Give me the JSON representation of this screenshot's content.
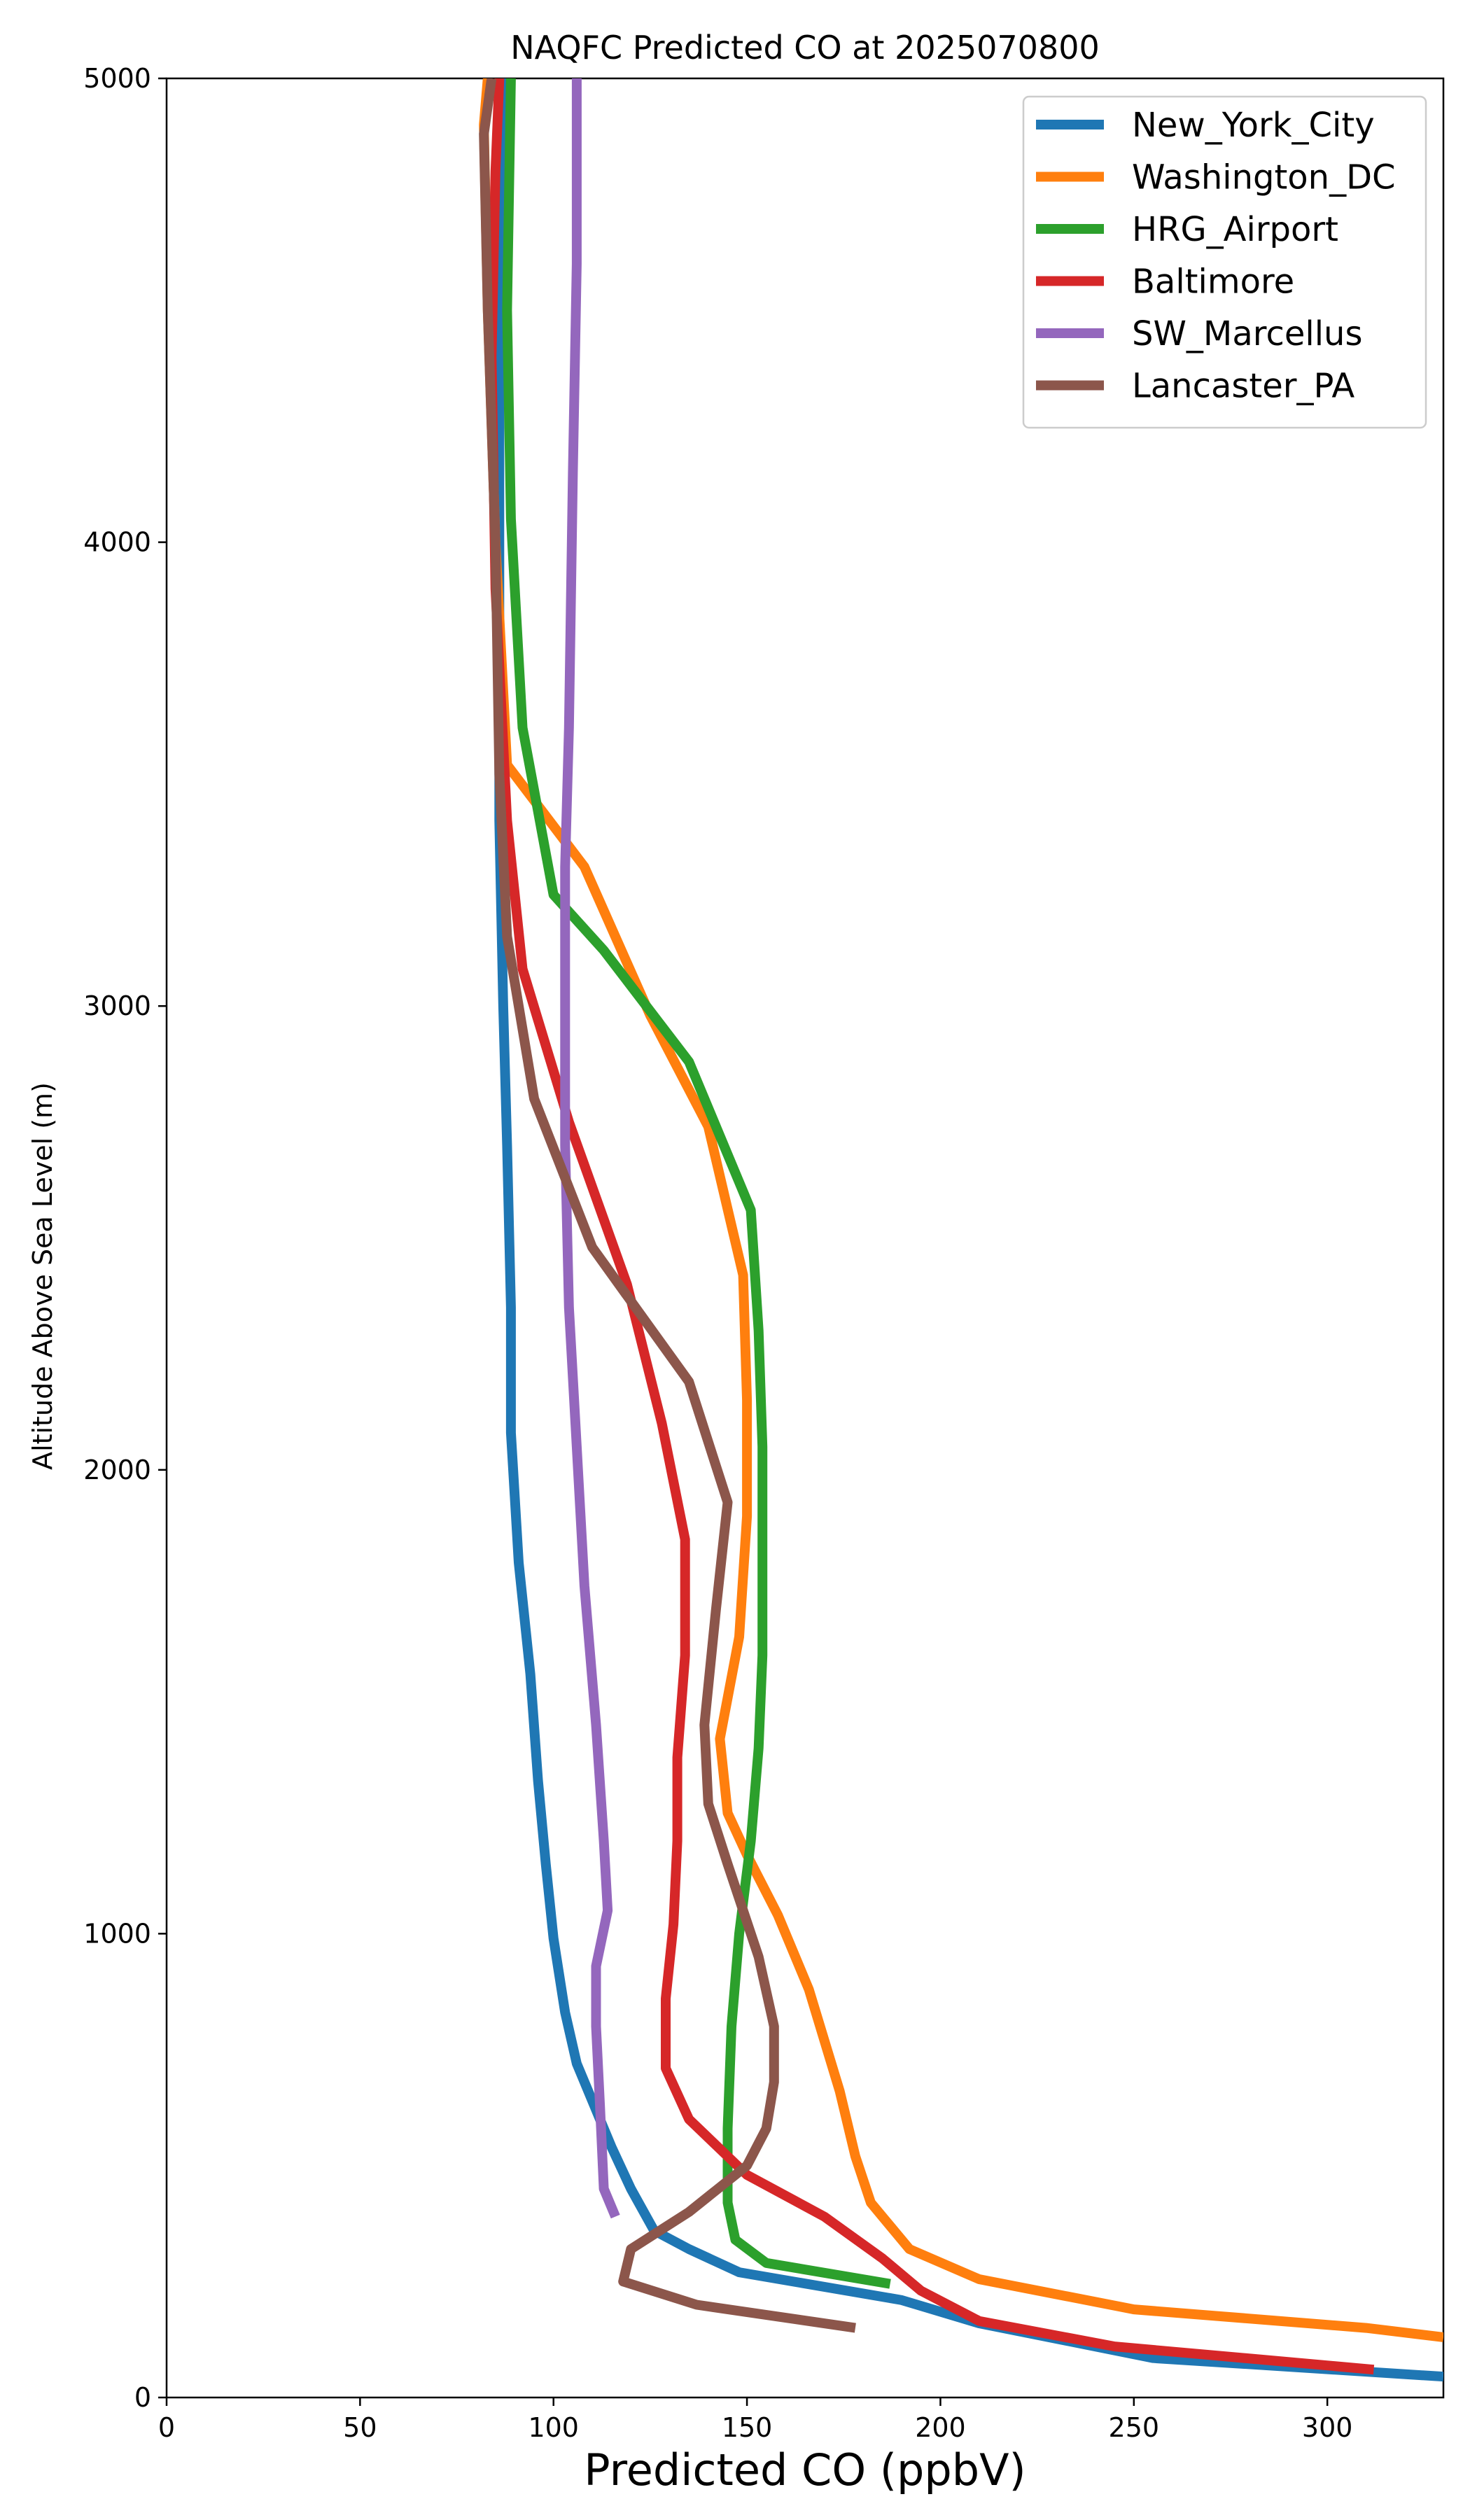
{
  "chart_data": {
    "type": "line",
    "title": "NAQFC Predicted CO at 2025070800",
    "xlabel": "Predicted CO (ppbV)",
    "ylabel": "Altitude Above Sea Level (m)",
    "xlim": [
      0,
      330
    ],
    "ylim": [
      0,
      5000
    ],
    "xticks": [
      "0",
      "50",
      "100",
      "150",
      "200",
      "250",
      "300"
    ],
    "yticks": [
      "0",
      "1000",
      "2000",
      "3000",
      "4000",
      "5000"
    ],
    "grid": false,
    "legend_position": "top-right",
    "series": [
      {
        "name": "New_York_City",
        "color": "#1f77b4",
        "points": [
          [
            330,
            45
          ],
          [
            255,
            85
          ],
          [
            210,
            160
          ],
          [
            190,
            210
          ],
          [
            148,
            270
          ],
          [
            135,
            320
          ],
          [
            126,
            360
          ],
          [
            120,
            450
          ],
          [
            115,
            540
          ],
          [
            110,
            640
          ],
          [
            106,
            720
          ],
          [
            103,
            830
          ],
          [
            100,
            990
          ],
          [
            98,
            1150
          ],
          [
            96,
            1330
          ],
          [
            94,
            1560
          ],
          [
            91,
            1800
          ],
          [
            89,
            2080
          ],
          [
            89,
            2350
          ],
          [
            88,
            2700
          ],
          [
            87,
            3000
          ],
          [
            86,
            3400
          ],
          [
            86,
            3800
          ],
          [
            86,
            4200
          ],
          [
            86,
            4600
          ],
          [
            87,
            5000
          ]
        ]
      },
      {
        "name": "Washington_DC",
        "color": "#ff7f0e",
        "points": [
          [
            330,
            130
          ],
          [
            310,
            150
          ],
          [
            250,
            190
          ],
          [
            210,
            255
          ],
          [
            192,
            320
          ],
          [
            182,
            420
          ],
          [
            178,
            520
          ],
          [
            174,
            660
          ],
          [
            166,
            880
          ],
          [
            158,
            1040
          ],
          [
            150,
            1170
          ],
          [
            145,
            1260
          ],
          [
            143,
            1420
          ],
          [
            148,
            1640
          ],
          [
            150,
            1900
          ],
          [
            150,
            2150
          ],
          [
            149,
            2420
          ],
          [
            140,
            2740
          ],
          [
            125,
            2980
          ],
          [
            108,
            3300
          ],
          [
            88,
            3520
          ],
          [
            85,
            4000
          ],
          [
            83,
            4500
          ],
          [
            82,
            4900
          ],
          [
            83,
            5000
          ]
        ]
      },
      {
        "name": "HRG_Airport",
        "color": "#2ca02c",
        "points": [
          [
            187,
            245
          ],
          [
            155,
            290
          ],
          [
            147,
            340
          ],
          [
            145,
            420
          ],
          [
            145,
            580
          ],
          [
            146,
            800
          ],
          [
            148,
            1000
          ],
          [
            151,
            1200
          ],
          [
            153,
            1400
          ],
          [
            154,
            1600
          ],
          [
            154,
            1800
          ],
          [
            154,
            2050
          ],
          [
            153,
            2300
          ],
          [
            151,
            2560
          ],
          [
            135,
            2880
          ],
          [
            113,
            3120
          ],
          [
            100,
            3240
          ],
          [
            92,
            3600
          ],
          [
            89,
            4050
          ],
          [
            88,
            4500
          ],
          [
            89,
            5000
          ]
        ]
      },
      {
        "name": "Baltimore",
        "color": "#d62728",
        "points": [
          [
            312,
            60
          ],
          [
            245,
            110
          ],
          [
            210,
            165
          ],
          [
            195,
            230
          ],
          [
            185,
            300
          ],
          [
            170,
            390
          ],
          [
            150,
            480
          ],
          [
            135,
            600
          ],
          [
            129,
            710
          ],
          [
            129,
            860
          ],
          [
            131,
            1020
          ],
          [
            132,
            1200
          ],
          [
            132,
            1380
          ],
          [
            134,
            1600
          ],
          [
            134,
            1850
          ],
          [
            128,
            2100
          ],
          [
            119,
            2400
          ],
          [
            104,
            2750
          ],
          [
            92,
            3080
          ],
          [
            88,
            3400
          ],
          [
            85,
            3900
          ],
          [
            84,
            4400
          ],
          [
            85,
            4800
          ],
          [
            86,
            5000
          ]
        ]
      },
      {
        "name": "SW_Marcellus",
        "color": "#9467bd",
        "points": [
          [
            116,
            390
          ],
          [
            113,
            450
          ],
          [
            112,
            630
          ],
          [
            111,
            800
          ],
          [
            111,
            930
          ],
          [
            114,
            1050
          ],
          [
            113,
            1200
          ],
          [
            111,
            1450
          ],
          [
            108,
            1750
          ],
          [
            106,
            2050
          ],
          [
            104,
            2350
          ],
          [
            103,
            2700
          ],
          [
            103,
            3000
          ],
          [
            103,
            3300
          ],
          [
            104,
            3600
          ],
          [
            105,
            4150
          ],
          [
            106,
            4600
          ],
          [
            106,
            5000
          ]
        ]
      },
      {
        "name": "Lancaster_PA",
        "color": "#8c564b",
        "points": [
          [
            178,
            150
          ],
          [
            137,
            200
          ],
          [
            118,
            250
          ],
          [
            120,
            320
          ],
          [
            135,
            400
          ],
          [
            150,
            500
          ],
          [
            155,
            580
          ],
          [
            157,
            680
          ],
          [
            157,
            800
          ],
          [
            153,
            950
          ],
          [
            145,
            1150
          ],
          [
            140,
            1280
          ],
          [
            139,
            1450
          ],
          [
            142,
            1700
          ],
          [
            145,
            1930
          ],
          [
            135,
            2190
          ],
          [
            110,
            2480
          ],
          [
            95,
            2800
          ],
          [
            88,
            3150
          ],
          [
            86,
            3500
          ],
          [
            85,
            4000
          ],
          [
            83,
            4500
          ],
          [
            82,
            4880
          ],
          [
            84,
            5000
          ]
        ]
      }
    ]
  }
}
